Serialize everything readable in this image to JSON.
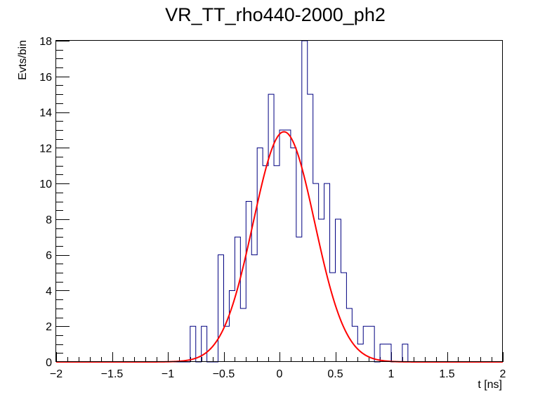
{
  "chart_data": {
    "type": "histogram",
    "title": "VR_TT_rho440-2000_ph2",
    "xlabel": "t [ns]",
    "ylabel": "Evts/bin",
    "xlim": [
      -2,
      2
    ],
    "ylim": [
      0,
      18
    ],
    "x_ticks": [
      -2,
      -1.5,
      -1,
      -0.5,
      0,
      0.5,
      1,
      1.5,
      2
    ],
    "x_tick_labels": [
      "−2",
      "−1.5",
      "−1",
      "−0.5",
      "0",
      "0.5",
      "1",
      "1.5",
      "2"
    ],
    "y_ticks": [
      0,
      2,
      4,
      6,
      8,
      10,
      12,
      14,
      16,
      18
    ],
    "y_tick_labels": [
      "0",
      "2",
      "4",
      "6",
      "8",
      "10",
      "12",
      "14",
      "16",
      "18"
    ],
    "grid": false,
    "bin_width": 0.05,
    "bins": [
      {
        "x0": -0.8,
        "value": 2
      },
      {
        "x0": -0.75,
        "value": 0
      },
      {
        "x0": -0.7,
        "value": 2
      },
      {
        "x0": -0.65,
        "value": 0
      },
      {
        "x0": -0.6,
        "value": 0
      },
      {
        "x0": -0.55,
        "value": 6
      },
      {
        "x0": -0.5,
        "value": 2
      },
      {
        "x0": -0.45,
        "value": 4
      },
      {
        "x0": -0.4,
        "value": 7
      },
      {
        "x0": -0.35,
        "value": 3
      },
      {
        "x0": -0.3,
        "value": 9
      },
      {
        "x0": -0.25,
        "value": 6
      },
      {
        "x0": -0.2,
        "value": 12
      },
      {
        "x0": -0.15,
        "value": 11
      },
      {
        "x0": -0.1,
        "value": 15
      },
      {
        "x0": -0.05,
        "value": 11
      },
      {
        "x0": 0.0,
        "value": 13
      },
      {
        "x0": 0.05,
        "value": 13
      },
      {
        "x0": 0.1,
        "value": 12
      },
      {
        "x0": 0.15,
        "value": 7
      },
      {
        "x0": 0.2,
        "value": 18
      },
      {
        "x0": 0.25,
        "value": 15
      },
      {
        "x0": 0.3,
        "value": 10
      },
      {
        "x0": 0.35,
        "value": 8
      },
      {
        "x0": 0.4,
        "value": 10
      },
      {
        "x0": 0.45,
        "value": 5
      },
      {
        "x0": 0.5,
        "value": 8
      },
      {
        "x0": 0.55,
        "value": 5
      },
      {
        "x0": 0.6,
        "value": 3
      },
      {
        "x0": 0.65,
        "value": 2
      },
      {
        "x0": 0.7,
        "value": 1
      },
      {
        "x0": 0.75,
        "value": 2
      },
      {
        "x0": 0.8,
        "value": 2
      },
      {
        "x0": 0.85,
        "value": 0
      },
      {
        "x0": 0.9,
        "value": 1
      },
      {
        "x0": 0.95,
        "value": 1
      },
      {
        "x0": 1.0,
        "value": 0
      },
      {
        "x0": 1.05,
        "value": 0
      },
      {
        "x0": 1.1,
        "value": 1
      }
    ],
    "fit": {
      "type": "gaussian",
      "amplitude": 12.9,
      "mean": 0.04,
      "sigma": 0.275
    },
    "colors": {
      "histogram": "#000080",
      "fit": "#ff0000",
      "frame": "#000000"
    }
  }
}
